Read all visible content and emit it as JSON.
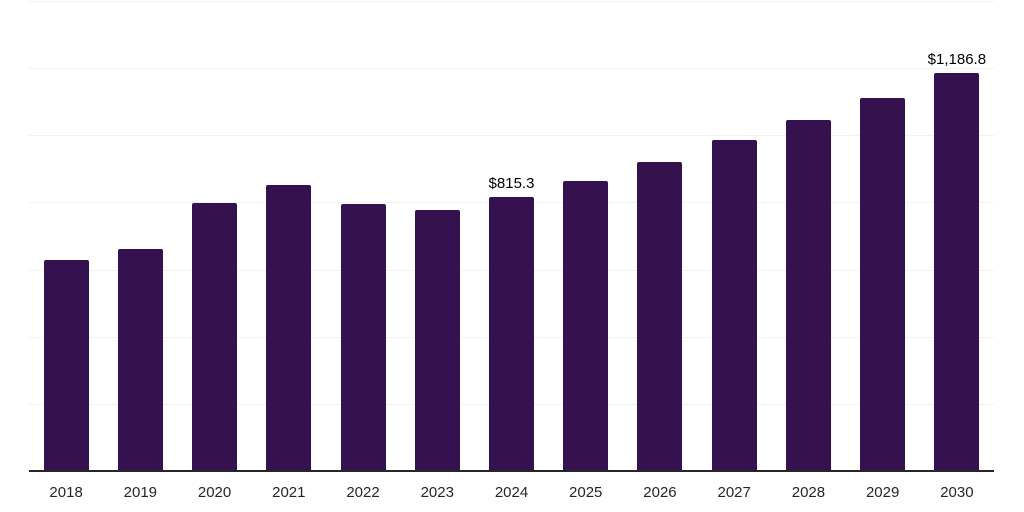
{
  "chart_data": {
    "type": "bar",
    "title": "",
    "xlabel": "",
    "ylabel": "",
    "categories": [
      "2018",
      "2019",
      "2020",
      "2021",
      "2022",
      "2023",
      "2024",
      "2025",
      "2026",
      "2027",
      "2028",
      "2029",
      "2030"
    ],
    "values": [
      628,
      661,
      798,
      851,
      795,
      777,
      815.3,
      863,
      920,
      985,
      1045,
      1110,
      1186.8
    ],
    "data_labels": {
      "2024": "$815.3",
      "2030": "$1,186.8"
    },
    "ylim": [
      0,
      1400
    ],
    "gridline_step": 200,
    "grid": "horizontal-only",
    "legend": "none",
    "y_axis_tick_labels_visible": false,
    "bar_color": "#351150",
    "grid_color": "#f2f2f2",
    "axis_color": "#262626",
    "tick_label_color": "#262626",
    "data_label_color": "#000000",
    "background_color": "#ffffff"
  }
}
